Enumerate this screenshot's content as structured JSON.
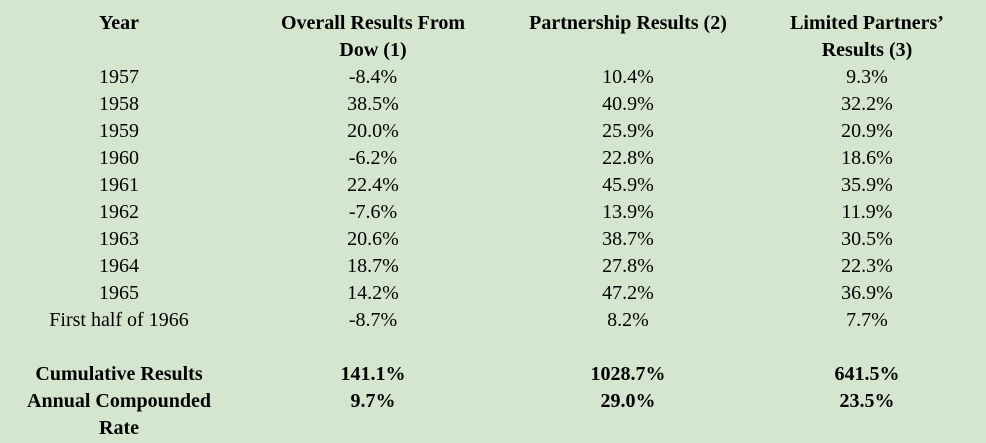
{
  "headers": {
    "year": "Year",
    "dow_line1": "Overall Results From",
    "dow_line2": "Dow (1)",
    "partnership": "Partnership Results (2)",
    "lp_line1": "Limited Partners’",
    "lp_line2": "Results (3)"
  },
  "rows": [
    {
      "year": "1957",
      "dow": "-8.4%",
      "partnership": "10.4%",
      "limited_partners": "9.3%"
    },
    {
      "year": "1958",
      "dow": "38.5%",
      "partnership": "40.9%",
      "limited_partners": "32.2%"
    },
    {
      "year": "1959",
      "dow": "20.0%",
      "partnership": "25.9%",
      "limited_partners": "20.9%"
    },
    {
      "year": "1960",
      "dow": "-6.2%",
      "partnership": "22.8%",
      "limited_partners": "18.6%"
    },
    {
      "year": "1961",
      "dow": "22.4%",
      "partnership": "45.9%",
      "limited_partners": "35.9%"
    },
    {
      "year": "1962",
      "dow": "-7.6%",
      "partnership": "13.9%",
      "limited_partners": "11.9%"
    },
    {
      "year": "1963",
      "dow": "20.6%",
      "partnership": "38.7%",
      "limited_partners": "30.5%"
    },
    {
      "year": "1964",
      "dow": "18.7%",
      "partnership": "27.8%",
      "limited_partners": "22.3%"
    },
    {
      "year": "1965",
      "dow": "14.2%",
      "partnership": "47.2%",
      "limited_partners": "36.9%"
    },
    {
      "year": "First half of 1966",
      "dow": "-8.7%",
      "partnership": "8.2%",
      "limited_partners": "7.7%"
    }
  ],
  "cumulative": {
    "label": "Cumulative Results",
    "dow": "141.1%",
    "partnership": "1028.7%",
    "limited_partners": "641.5%"
  },
  "annual": {
    "label_line1": "Annual Compounded",
    "label_line2": "Rate",
    "dow": "9.7%",
    "partnership": "29.0%",
    "limited_partners": "23.5%"
  },
  "colors": {
    "background": "#d4e6cd",
    "text": "#000000"
  }
}
